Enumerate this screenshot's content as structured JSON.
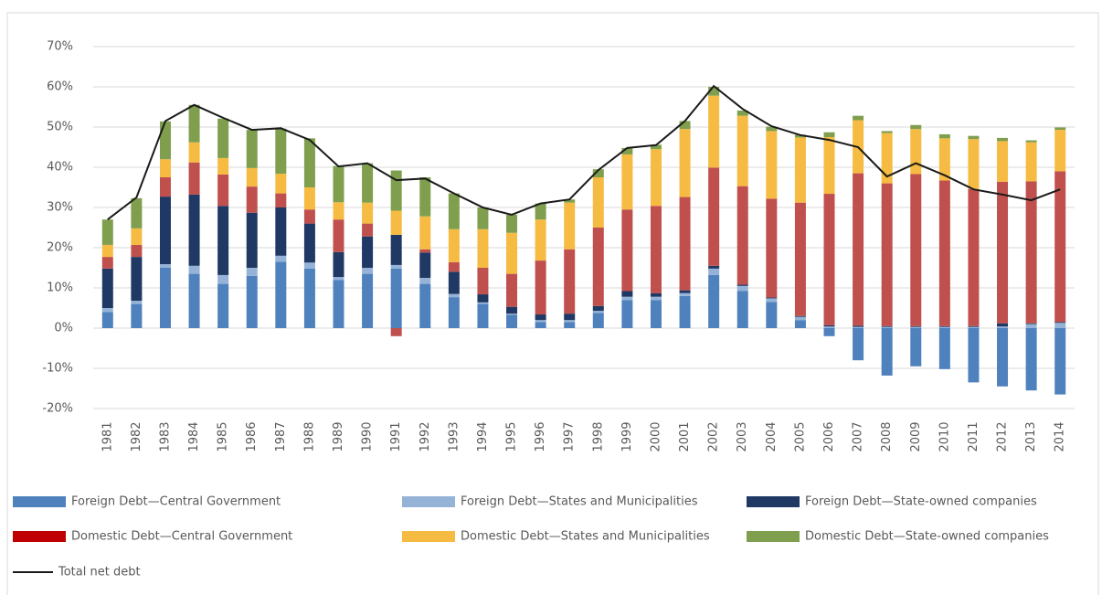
{
  "chart_data": {
    "type": "stacked-bar-line",
    "categories": [
      "1981",
      "1982",
      "1983",
      "1984",
      "1985",
      "1986",
      "1987",
      "1988",
      "1989",
      "1990",
      "1991",
      "1992",
      "1993",
      "1994",
      "1995",
      "1996",
      "1997",
      "1998",
      "1999",
      "2000",
      "2001",
      "2002",
      "2003",
      "2004",
      "2005",
      "2006",
      "2007",
      "2008",
      "2009",
      "2010",
      "2011",
      "2012",
      "2013",
      "2014"
    ],
    "ylim": [
      -20,
      70
    ],
    "yticks": [
      {
        "value": -20,
        "label": "-20%"
      },
      {
        "value": -10,
        "label": "-10%"
      },
      {
        "value": 0,
        "label": "0%"
      },
      {
        "value": 10,
        "label": "10%"
      },
      {
        "value": 20,
        "label": "20%"
      },
      {
        "value": 30,
        "label": "30%"
      },
      {
        "value": 40,
        "label": "40%"
      },
      {
        "value": 50,
        "label": "50%"
      },
      {
        "value": 60,
        "label": "60%"
      },
      {
        "value": 70,
        "label": "70%"
      }
    ],
    "grid": true,
    "series": [
      {
        "name": "Foreign Debt—Central Government",
        "color": "#4f81bd",
        "values": [
          4,
          6,
          15,
          13.5,
          11,
          13,
          16.5,
          14.8,
          12,
          13.5,
          14.8,
          11,
          7.7,
          6,
          3.3,
          1.5,
          1.5,
          3.8,
          7,
          7,
          8,
          13.2,
          9.2,
          6.5,
          2,
          -2,
          -8,
          -11.8,
          -9.5,
          -10.2,
          -13.5,
          -14.5,
          -15.5,
          -16.5
        ]
      },
      {
        "name": "Foreign Debt—States and Municipalities",
        "color": "#95b3d7",
        "values": [
          1,
          0.8,
          0.9,
          2,
          2.2,
          2,
          1.5,
          1.5,
          0.7,
          1.5,
          0.9,
          1.5,
          0.8,
          0.4,
          0.3,
          0.5,
          0.5,
          0.5,
          0.8,
          0.8,
          0.7,
          1.6,
          1.3,
          0.9,
          0.8,
          0.4,
          0.3,
          0.3,
          0.3,
          0.3,
          0.3,
          0.4,
          1,
          1.3
        ]
      },
      {
        "name": "Foreign Debt—State-owned companies",
        "color": "#1f3864",
        "values": [
          9.8,
          10.9,
          16.8,
          17.7,
          17.2,
          13.7,
          12,
          9.7,
          6.2,
          7.8,
          7.5,
          6.3,
          5.5,
          2,
          1.7,
          1.4,
          1.6,
          1.2,
          1.4,
          0.9,
          0.7,
          0.7,
          0.3,
          0.2,
          0.2,
          0.3,
          0.3,
          0.2,
          0.2,
          0.2,
          0.2,
          0.8,
          0.2,
          0.2
        ]
      },
      {
        "name": "Domestic Debt—Central Government",
        "color": "#c0504d",
        "legend_color": "#c00000",
        "values": [
          2.9,
          3,
          4.8,
          8,
          7.8,
          6.5,
          3.5,
          3.5,
          8.1,
          3.2,
          -2,
          0.8,
          2.4,
          6.6,
          8.2,
          13.4,
          16,
          19.5,
          20.3,
          21.7,
          23.2,
          24.4,
          24.5,
          24.6,
          28.2,
          32.7,
          37.9,
          35.5,
          37.8,
          36.2,
          34.1,
          35.2,
          35.3,
          37.5
        ]
      },
      {
        "name": "Domestic Debt—States and Municipalities",
        "color": "#f6bb42",
        "values": [
          3,
          4.1,
          4.5,
          5,
          4.1,
          4.6,
          4.9,
          5.5,
          4.3,
          5.2,
          6,
          8.2,
          8.2,
          9.6,
          10.2,
          10.2,
          11.6,
          12.5,
          13.7,
          14.1,
          16.9,
          17.9,
          17.5,
          16.8,
          16.2,
          14.1,
          13.2,
          12.5,
          11.2,
          10.5,
          12.4,
          10.1,
          9.7,
          10.3
        ]
      },
      {
        "name": "Domestic Debt—State-owned companies",
        "color": "#7f9f4f",
        "values": [
          6.3,
          7.5,
          9.4,
          9.3,
          9.8,
          9.5,
          11.2,
          12.2,
          9,
          9.8,
          10,
          9.7,
          8.9,
          5.4,
          4.5,
          4,
          0.8,
          2,
          1.6,
          1.1,
          2,
          2.2,
          1.3,
          1.1,
          0.7,
          1.2,
          1.1,
          0.5,
          1,
          1,
          0.8,
          0.8,
          0.5,
          0.6
        ]
      }
    ],
    "line": {
      "name": "Total net debt",
      "color": "#1a1a1a",
      "values": [
        27,
        32.5,
        51.5,
        55.5,
        52.3,
        49.3,
        49.7,
        46.8,
        40.2,
        41,
        36.8,
        37.2,
        33.5,
        30,
        28.2,
        31,
        32,
        39.3,
        44.8,
        45.5,
        51.5,
        60.2,
        54.5,
        50.2,
        48,
        46.8,
        45,
        37.7,
        41,
        38,
        34.5,
        33.2,
        31.8,
        34.5
      ]
    }
  }
}
